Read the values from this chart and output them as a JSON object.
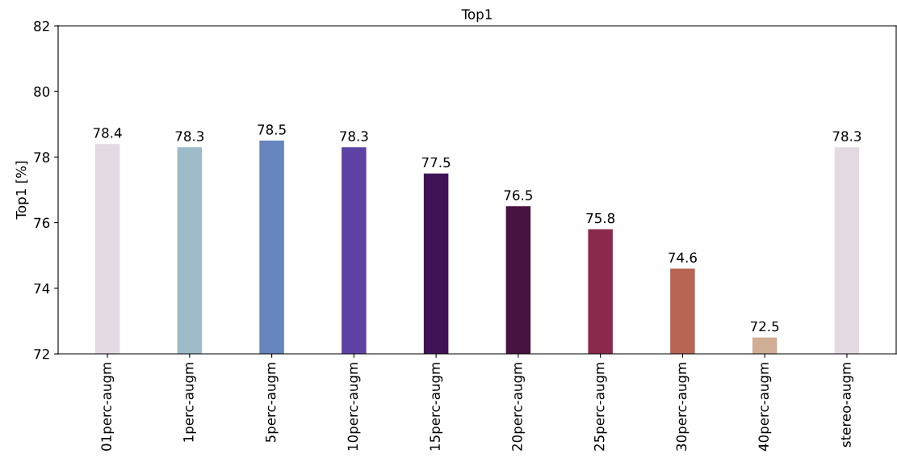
{
  "chart_data": {
    "type": "bar",
    "title": "Top1",
    "ylabel": "Top1 [%]",
    "categories": [
      "01perc-augm",
      "1perc-augm",
      "5perc-augm",
      "10perc-augm",
      "15perc-augm",
      "20perc-augm",
      "25perc-augm",
      "30perc-augm",
      "40perc-augm",
      "stereo-augm"
    ],
    "values": [
      78.4,
      78.3,
      78.5,
      78.3,
      77.5,
      76.5,
      75.8,
      74.6,
      72.5,
      78.3
    ],
    "colors": [
      "#e2d9e2",
      "#9dbbc9",
      "#6785be",
      "#5e43a5",
      "#3f1355",
      "#471340",
      "#8b2a4e",
      "#b86553",
      "#d0ae96",
      "#e2d9e2"
    ],
    "ylim": [
      72,
      82
    ],
    "yticks": [
      72,
      74,
      76,
      78,
      80,
      82
    ],
    "data_labels": true,
    "grid": false
  }
}
